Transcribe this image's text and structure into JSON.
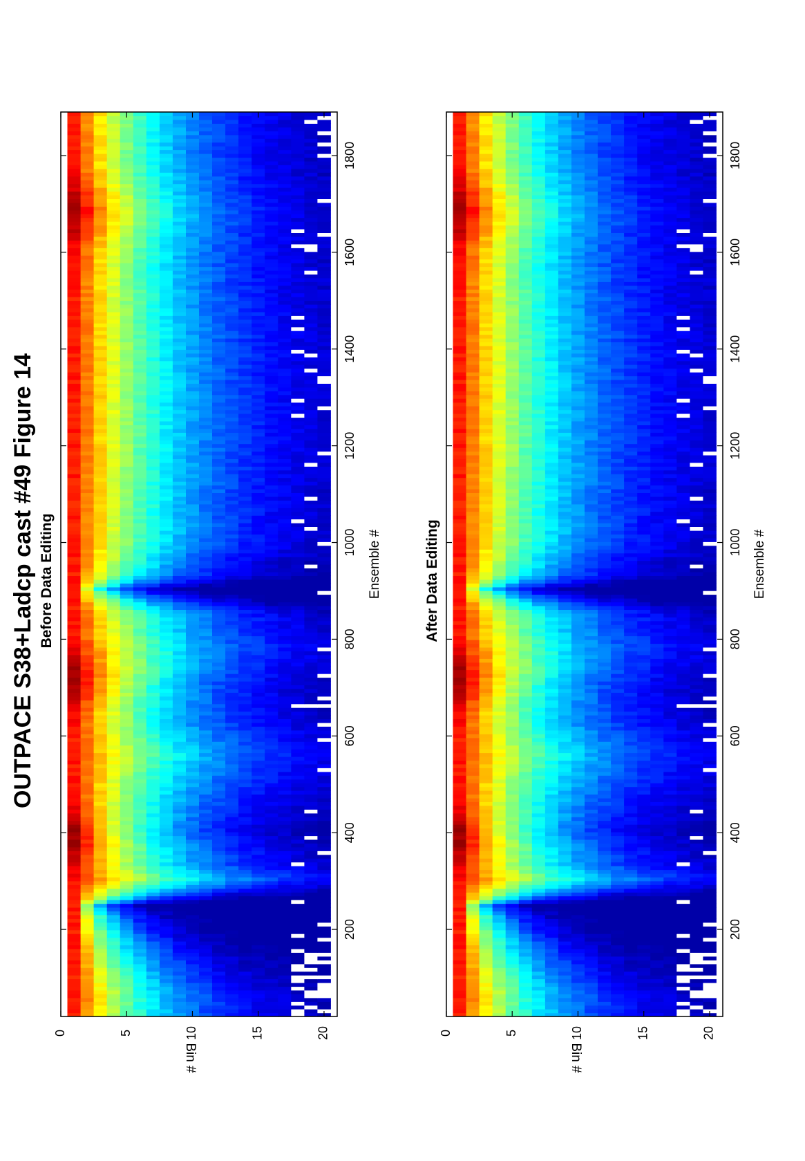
{
  "figure": {
    "title": "OUTPACE S38+Ladcp cast #49  Figure 14"
  },
  "chart_data": [
    {
      "type": "heatmap",
      "title": "Before Data Editing",
      "xlabel": "Ensemble #",
      "ylabel": "Bin #",
      "xlim": [
        20,
        1890
      ],
      "ylim": [
        0,
        21
      ],
      "xticks": [
        "200",
        "400",
        "600",
        "800",
        "1000",
        "1200",
        "1400",
        "1600",
        "1800"
      ],
      "yticks": [
        "0",
        "5",
        "10",
        "15",
        "20"
      ],
      "colormap": "jet",
      "bins": 20,
      "ensemble_range": [
        20,
        1890
      ],
      "descent_segments": [
        [
          20,
          240
        ],
        [
          310,
          900
        ]
      ],
      "ascent_segments": [
        [
          240,
          310
        ],
        [
          900,
          1890
        ]
      ],
      "echo_intensity_max_ensembles": [
        385,
        715,
        1680
      ],
      "gaps_present": true
    },
    {
      "type": "heatmap",
      "title": "After Data Editing",
      "xlabel": "Ensemble #",
      "ylabel": "Bin #",
      "xlim": [
        20,
        1890
      ],
      "ylim": [
        0,
        21
      ],
      "xticks": [
        "200",
        "400",
        "600",
        "800",
        "1000",
        "1200",
        "1400",
        "1600",
        "1800"
      ],
      "yticks": [
        "0",
        "5",
        "10",
        "15",
        "20"
      ],
      "colormap": "jet",
      "bins": 20,
      "ensemble_range": [
        20,
        1890
      ],
      "descent_segments": [
        [
          20,
          240
        ],
        [
          310,
          900
        ]
      ],
      "ascent_segments": [
        [
          240,
          310
        ],
        [
          900,
          1890
        ]
      ],
      "echo_intensity_max_ensembles": [
        385,
        715,
        1680
      ],
      "gaps_present": true
    }
  ]
}
